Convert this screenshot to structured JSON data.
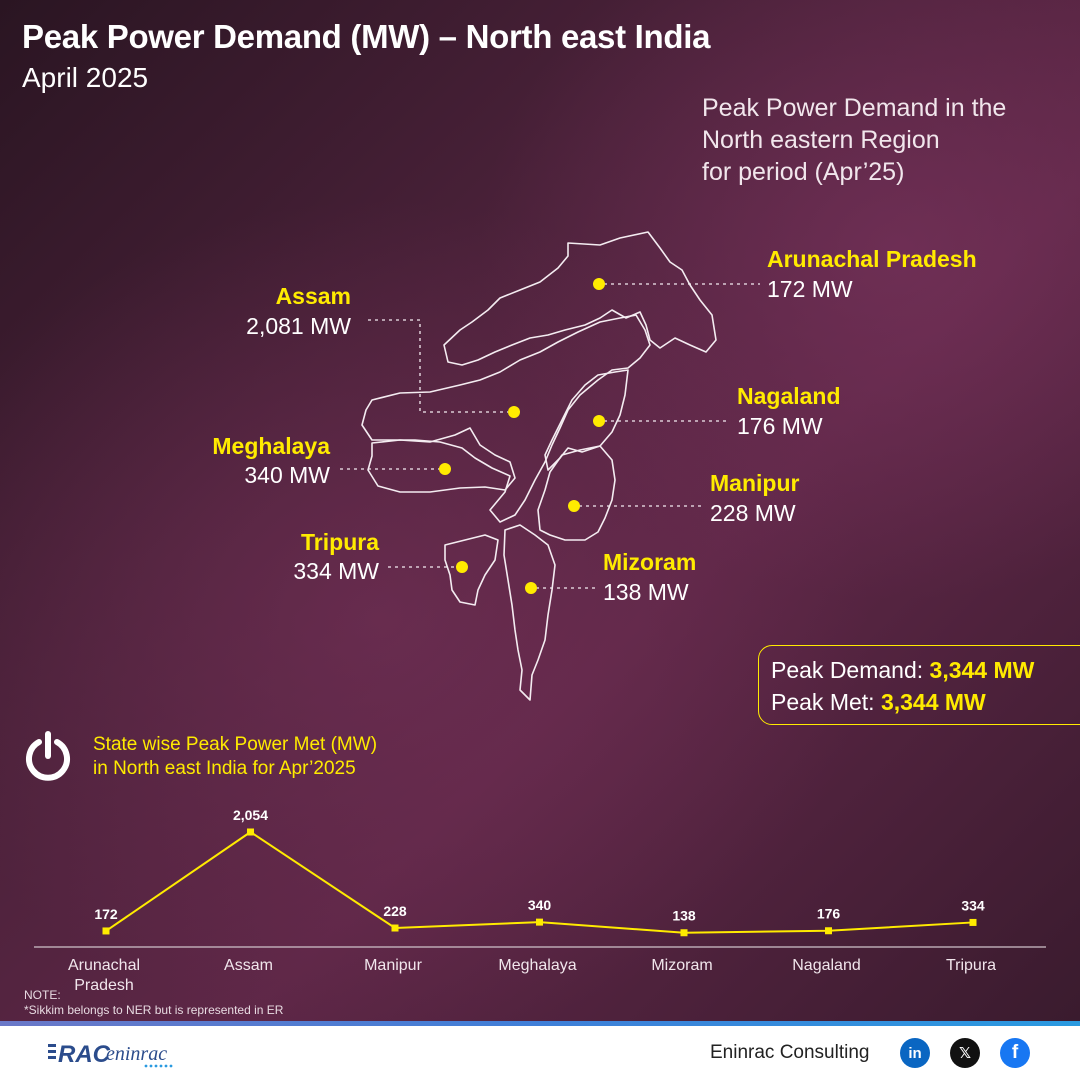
{
  "header": {
    "title": "Peak Power Demand (MW) – North east India",
    "subtitle": "April 2025"
  },
  "region_note": [
    "Peak Power Demand in the",
    "North eastern Region",
    "for period (Apr’25)"
  ],
  "map_states": [
    {
      "name": "Arunachal Pradesh",
      "value": "172 MW"
    },
    {
      "name": "Assam",
      "value": "2,081 MW"
    },
    {
      "name": "Nagaland",
      "value": "176 MW"
    },
    {
      "name": "Meghalaya",
      "value": "340 MW"
    },
    {
      "name": "Manipur",
      "value": "228 MW"
    },
    {
      "name": "Tripura",
      "value": "334 MW"
    },
    {
      "name": "Mizoram",
      "value": "138 MW"
    }
  ],
  "summary": {
    "demand_label": "Peak Demand:",
    "demand_value": "3,344 MW",
    "met_label": "Peak Met:",
    "met_value": "3,344 MW"
  },
  "met_chart_title": [
    "State wise Peak Power Met (MW)",
    "in North east India for Apr’2025"
  ],
  "chart_data": {
    "type": "line",
    "categories": [
      "Arunachal Pradesh",
      "Assam",
      "Manipur",
      "Meghalaya",
      "Mizoram",
      "Nagaland",
      "Tripura"
    ],
    "category_labels": [
      [
        "Arunachal",
        "Pradesh"
      ],
      [
        "Assam"
      ],
      [
        "Manipur"
      ],
      [
        "Meghalaya"
      ],
      [
        "Mizoram"
      ],
      [
        "Nagaland"
      ],
      [
        "Tripura"
      ]
    ],
    "values": [
      172,
      2054,
      228,
      340,
      138,
      176,
      334
    ],
    "value_labels": [
      "172",
      "2,054",
      "228",
      "340",
      "138",
      "176",
      "334"
    ],
    "color": "#ffeb00",
    "grid": false
  },
  "notes": {
    "line1": "NOTE:",
    "line2": "*Sikkim belongs to NER but is represented in ER"
  },
  "footer": {
    "brand": "Eninrac Consulting",
    "logo_main": "RAC",
    "logo_script": "eninrac",
    "social": [
      {
        "icon": "linkedin-icon",
        "glyph": "in",
        "color": "#0a66c2"
      },
      {
        "icon": "x-icon",
        "glyph": "𝕏",
        "color": "#111111"
      },
      {
        "icon": "facebook-icon",
        "glyph": "f",
        "color": "#1877f2"
      }
    ]
  }
}
